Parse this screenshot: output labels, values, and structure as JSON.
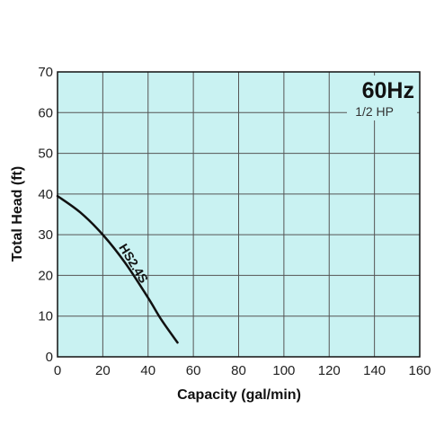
{
  "chart_data": {
    "type": "line",
    "title": "60Hz",
    "subtitle": "1/2 HP",
    "xlabel": "Capacity (gal/min)",
    "ylabel": "Total Head (ft)",
    "xlim": [
      0,
      160
    ],
    "ylim": [
      0,
      70
    ],
    "xticks": [
      "0",
      "20",
      "40",
      "60",
      "80",
      "100",
      "120",
      "140",
      "160"
    ],
    "yticks": [
      "0",
      "10",
      "20",
      "30",
      "40",
      "50",
      "60",
      "70"
    ],
    "grid": true,
    "colors": {
      "plot_background": "#c9f2f2",
      "grid": "#555555",
      "line": "#111111"
    },
    "series": [
      {
        "name": "HS2.4S",
        "x": [
          0,
          10,
          20,
          30,
          40,
          46,
          53
        ],
        "y": [
          39.5,
          35.5,
          30,
          23,
          14.5,
          9,
          3.5
        ]
      }
    ]
  }
}
